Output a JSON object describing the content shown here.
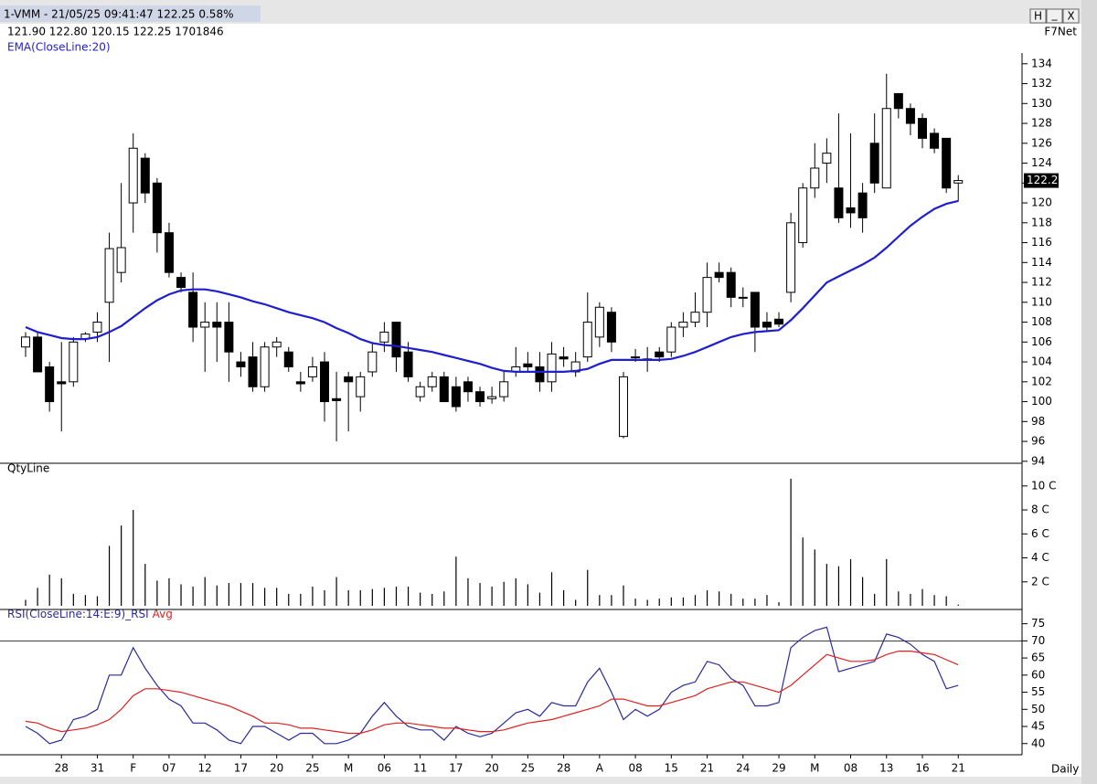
{
  "window": {
    "title": "1-VMM - 21/05/25 09:41:47 122.25 0.58%",
    "buttons": [
      "H",
      "_",
      "X"
    ],
    "quote": "121.90 122.80 120.15 122.25 1701846",
    "source": "F7Net"
  },
  "chart_data": [
    {
      "type": "candlestick",
      "open": [
        105.5,
        106.5,
        103.5,
        102,
        102,
        106.3,
        107,
        110,
        113,
        120,
        124.5,
        122,
        117,
        112.5,
        111,
        107.5,
        108,
        108,
        104,
        104.5,
        101.5,
        105.5,
        105,
        102,
        102.5,
        104,
        100.3,
        102.5,
        100.5,
        103,
        106,
        108,
        105,
        100.5,
        101.5,
        102.5,
        101.5,
        102,
        101,
        100.3,
        100.5,
        103,
        103.8,
        103.5,
        102,
        104.5,
        103,
        104.5,
        106.5,
        109,
        96.5,
        104.5,
        104.3,
        105,
        105,
        107.5,
        108,
        109,
        113,
        113,
        110.5,
        111,
        108,
        108.3,
        111,
        116,
        121.5,
        124,
        121.5,
        119.5,
        121,
        126,
        121.5,
        131,
        129.5,
        128.5,
        127,
        126.5,
        122
      ],
      "high": [
        107,
        107,
        104,
        106,
        106.5,
        107,
        109,
        117,
        122,
        127,
        125,
        122.5,
        118,
        113,
        113,
        110,
        110,
        110,
        105,
        106,
        106,
        106.5,
        105.5,
        103,
        104.5,
        105,
        103,
        103,
        103,
        106,
        108,
        108,
        106,
        102,
        103,
        103,
        102.5,
        102.5,
        101.5,
        101.5,
        103,
        105.5,
        105,
        105,
        106,
        105.5,
        105,
        111,
        110,
        109.5,
        103,
        105.3,
        105.5,
        105.5,
        108,
        109,
        111,
        114,
        114,
        113.5,
        111.5,
        111,
        109,
        109,
        119,
        122,
        126,
        126.5,
        129,
        127,
        122,
        129,
        133,
        131,
        130,
        129,
        127.5,
        126.5,
        122.8
      ],
      "low": [
        104.5,
        103,
        99,
        97,
        101.5,
        106,
        106,
        104,
        112,
        117,
        120,
        115,
        112.5,
        111,
        106,
        103,
        104,
        102,
        102.5,
        101,
        101,
        104.5,
        103,
        101,
        102,
        98,
        96,
        97,
        99,
        102.5,
        105,
        103,
        102,
        100,
        101,
        100,
        99,
        100,
        99.5,
        99.8,
        100,
        102.5,
        103,
        101,
        101,
        103.5,
        102.5,
        104,
        105.5,
        105,
        96.3,
        104,
        103,
        104,
        104.5,
        106.5,
        107.5,
        107.5,
        112,
        109.5,
        109.5,
        105,
        107,
        107.5,
        110,
        115.5,
        120.5,
        122,
        118,
        117.5,
        117,
        121,
        121.5,
        128.5,
        126.8,
        125.5,
        125,
        121,
        120.15
      ],
      "close": [
        106.5,
        103,
        100,
        101.8,
        106,
        106.8,
        108,
        115.4,
        115.5,
        125.5,
        121,
        117,
        113,
        111.5,
        107.5,
        108,
        107.5,
        105,
        103.5,
        101.5,
        105.5,
        106,
        103.5,
        101.8,
        103.5,
        100,
        100.1,
        102,
        102.5,
        105,
        107,
        104.5,
        102.5,
        101.5,
        102.5,
        100,
        99.5,
        101,
        100,
        100.5,
        102,
        103.5,
        103.5,
        102,
        104.8,
        104.3,
        104,
        108,
        109.5,
        106,
        102.5,
        104.5,
        104.3,
        104.5,
        107.5,
        108,
        109,
        112.5,
        112.5,
        110.5,
        110.5,
        107.5,
        107.5,
        107.8,
        118,
        121.5,
        123.5,
        125,
        118.5,
        119,
        118.5,
        122,
        129.5,
        129.5,
        128,
        126.5,
        125.5,
        121.5,
        122.25
      ],
      "series": [
        {
          "name": "EMA(CloseLine:20)",
          "color": "#1f1fd0",
          "values": [
            107.5,
            107,
            106.7,
            106.4,
            106.3,
            106.3,
            106.5,
            107,
            107.6,
            108.5,
            109.4,
            110.2,
            110.8,
            111.2,
            111.3,
            111.3,
            111.1,
            110.8,
            110.5,
            110.1,
            109.8,
            109.4,
            109,
            108.7,
            108.4,
            108,
            107.4,
            106.9,
            106.3,
            105.9,
            105.7,
            105.6,
            105.4,
            105.2,
            105,
            104.7,
            104.4,
            104.1,
            103.8,
            103.4,
            103.1,
            103,
            103,
            103,
            103,
            103,
            103.1,
            103.3,
            103.8,
            104.2,
            104.2,
            104.2,
            104.2,
            104.2,
            104.3,
            104.6,
            105,
            105.5,
            106,
            106.5,
            106.8,
            107,
            107.1,
            107.2,
            108.2,
            109.4,
            110.7,
            112,
            112.6,
            113.2,
            113.8,
            114.5,
            115.5,
            116.6,
            117.7,
            118.6,
            119.4,
            119.9,
            120.2
          ]
        }
      ],
      "ylim": [
        93.8,
        134.9
      ],
      "yticks": [
        94,
        96,
        98,
        100,
        102,
        104,
        106,
        108,
        110,
        112,
        114,
        116,
        118,
        120,
        122,
        124,
        126,
        128,
        130,
        132,
        134
      ]
    },
    {
      "type": "bar",
      "title": "QtyLine",
      "color": "#000000",
      "values": [
        0.5,
        1.5,
        2.6,
        2.3,
        1.0,
        0.9,
        0.8,
        5.0,
        6.7,
        8.0,
        3.5,
        2.1,
        2.3,
        1.8,
        1.6,
        2.4,
        1.7,
        1.9,
        1.9,
        1.9,
        1.5,
        1.5,
        1.0,
        1.0,
        1.6,
        1.3,
        2.4,
        1.3,
        1.3,
        1.4,
        1.5,
        1.6,
        1.6,
        1.1,
        1.0,
        1.2,
        4.1,
        2.3,
        1.9,
        1.6,
        2.0,
        2.3,
        1.8,
        1.1,
        2.8,
        1.3,
        0.5,
        3.0,
        0.9,
        0.9,
        1.7,
        0.6,
        0.5,
        0.6,
        0.7,
        0.7,
        0.9,
        1.3,
        1.2,
        1.0,
        0.6,
        0.6,
        0.9,
        0.3,
        10.6,
        5.7,
        4.7,
        3.5,
        3.3,
        3.9,
        2.4,
        1.0,
        3.9,
        1.2,
        1.0,
        1.4,
        0.9,
        0.8,
        0.1
      ],
      "ylim": [
        0,
        10.9
      ],
      "yticks": [
        {
          "value": 2,
          "label": "2 C"
        },
        {
          "value": 4,
          "label": "4 C"
        },
        {
          "value": 6,
          "label": "6 C"
        },
        {
          "value": 8,
          "label": "8 C"
        },
        {
          "value": 10,
          "label": "10 C"
        }
      ]
    },
    {
      "type": "line",
      "xlabel": "Daily",
      "categories": [
        null,
        null,
        null,
        "28",
        null,
        null,
        "31",
        null,
        null,
        "F",
        null,
        null,
        "07",
        null,
        null,
        "12",
        null,
        null,
        "17",
        null,
        null,
        "20",
        null,
        null,
        "25",
        null,
        null,
        "M",
        null,
        null,
        "06",
        null,
        null,
        "11",
        null,
        null,
        "17",
        null,
        null,
        "20",
        null,
        null,
        "25",
        null,
        null,
        "28",
        null,
        null,
        "A",
        null,
        null,
        "08",
        null,
        null,
        "15",
        null,
        null,
        "21",
        null,
        null,
        "24",
        null,
        null,
        "29",
        null,
        null,
        "M",
        null,
        null,
        "08",
        null,
        null,
        "13",
        null,
        null,
        "16",
        null,
        null,
        "21"
      ],
      "series": [
        {
          "name": "RSI(CloseLine:14:E:9)_RSI",
          "color": "#2a2a9a",
          "values": [
            45,
            43,
            40,
            41,
            47,
            48,
            50,
            60,
            60,
            68,
            62,
            57,
            53,
            51,
            46,
            46,
            44,
            41,
            40,
            45,
            45,
            43,
            41,
            43,
            43,
            40,
            40,
            41,
            43,
            48,
            52,
            48,
            45,
            44,
            44,
            41,
            45,
            43,
            42,
            43,
            46,
            49,
            50,
            48,
            52,
            51,
            51,
            58,
            62,
            55,
            47,
            50,
            48,
            50,
            55,
            57,
            58,
            64,
            63,
            59,
            57,
            51,
            51,
            52,
            68,
            71,
            73,
            74,
            61,
            62,
            63,
            64,
            72,
            71,
            69,
            66,
            64,
            56,
            57
          ]
        },
        {
          "name": "Avg",
          "color": "#e02020",
          "values": [
            46.5,
            46,
            44.5,
            43.5,
            44,
            44.5,
            45.5,
            47,
            50,
            54,
            56,
            56,
            55.5,
            55,
            54,
            53,
            52,
            51,
            49.5,
            48,
            46,
            46,
            45.5,
            44.5,
            44.5,
            44,
            43.5,
            43,
            43,
            44,
            45.5,
            46,
            46,
            45.5,
            45,
            44.5,
            44.5,
            44,
            43.5,
            43.5,
            44,
            45,
            46,
            46.5,
            47,
            48,
            49,
            50,
            51,
            53,
            53,
            52,
            51,
            51,
            52,
            53,
            54,
            56,
            57,
            58,
            58,
            57,
            56,
            55,
            57,
            60,
            63,
            66,
            65,
            64,
            64,
            64.5,
            66,
            67,
            67,
            66.5,
            66,
            64.5,
            63
          ]
        }
      ],
      "hlines": [
        70
      ],
      "ylim": [
        37,
        76.5
      ],
      "yticks": [
        40,
        45,
        50,
        55,
        60,
        65,
        70,
        75
      ]
    }
  ]
}
